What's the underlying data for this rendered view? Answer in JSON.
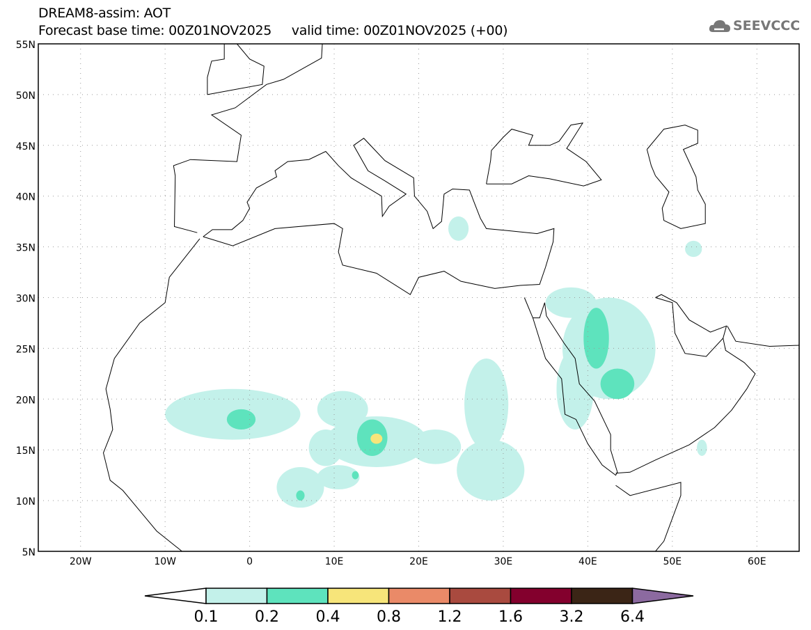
{
  "header": {
    "title": "DREAM8-assim: AOT",
    "base_time": "Forecast base time: 00Z01NOV2025",
    "valid_time": "valid time: 00Z01NOV2025 (+00)",
    "logo": "SEEVCCC"
  },
  "map": {
    "lon_range": [
      -25,
      65
    ],
    "lat_range": [
      5,
      55
    ],
    "lat_labels": [
      "5N",
      "10N",
      "15N",
      "20N",
      "25N",
      "30N",
      "35N",
      "40N",
      "45N",
      "50N",
      "55N"
    ],
    "lon_labels": [
      "20W",
      "10W",
      "0",
      "10E",
      "20E",
      "30E",
      "40E",
      "50E",
      "60E"
    ],
    "lon_ticks": [
      -20,
      -10,
      0,
      10,
      20,
      30,
      40,
      50,
      60
    ],
    "lat_ticks": [
      5,
      10,
      15,
      20,
      25,
      30,
      35,
      40,
      45,
      50,
      55
    ],
    "aot_regions": [
      {
        "level": 1,
        "lon": -2,
        "lat": 18.5,
        "dlon": 8,
        "dlat": 2.5
      },
      {
        "level": 1,
        "lon": 9,
        "lat": 15.2,
        "dlon": 2,
        "dlat": 1.8
      },
      {
        "level": 1,
        "lon": 11,
        "lat": 19,
        "dlon": 3,
        "dlat": 1.8
      },
      {
        "level": 1,
        "lon": 15,
        "lat": 15.8,
        "dlon": 6,
        "dlat": 2.5
      },
      {
        "level": 1,
        "lon": 22,
        "lat": 15.3,
        "dlon": 3,
        "dlat": 1.7
      },
      {
        "level": 1,
        "lon": 10.5,
        "lat": 12.3,
        "dlon": 2.5,
        "dlat": 1.2
      },
      {
        "level": 1,
        "lon": 6,
        "lat": 11.3,
        "dlon": 2.8,
        "dlat": 2
      },
      {
        "level": 1,
        "lon": 28.5,
        "lat": 13,
        "dlon": 4,
        "dlat": 3
      },
      {
        "level": 1,
        "lon": 28,
        "lat": 19.5,
        "dlon": 2.6,
        "dlat": 4.5
      },
      {
        "level": 1,
        "lon": 38,
        "lat": 29.5,
        "dlon": 3,
        "dlat": 1.5
      },
      {
        "level": 1,
        "lon": 42.5,
        "lat": 25,
        "dlon": 5.5,
        "dlat": 5
      },
      {
        "level": 1,
        "lon": 38.5,
        "lat": 21,
        "dlon": 2.2,
        "dlat": 4
      },
      {
        "level": 1,
        "lon": 53.5,
        "lat": 15.2,
        "dlon": 0.6,
        "dlat": 0.8
      },
      {
        "level": 1,
        "lon": 24.7,
        "lat": 36.8,
        "dlon": 1.2,
        "dlat": 1.2
      },
      {
        "level": 1,
        "lon": 52.5,
        "lat": 34.8,
        "dlon": 1,
        "dlat": 0.8
      },
      {
        "level": 2,
        "lon": -1,
        "lat": 18,
        "dlon": 1.7,
        "dlat": 1
      },
      {
        "level": 2,
        "lon": 41,
        "lat": 26,
        "dlon": 1.5,
        "dlat": 3
      },
      {
        "level": 2,
        "lon": 43.5,
        "lat": 21.5,
        "dlon": 2,
        "dlat": 1.5
      },
      {
        "level": 2,
        "lon": 14.5,
        "lat": 16.2,
        "dlon": 1.8,
        "dlat": 1.8
      },
      {
        "level": 2,
        "lon": 12.5,
        "lat": 12.5,
        "dlon": 0.4,
        "dlat": 0.4
      },
      {
        "level": 2,
        "lon": 6,
        "lat": 10.5,
        "dlon": 0.5,
        "dlat": 0.5
      },
      {
        "level": 3,
        "lon": 15,
        "lat": 16.1,
        "dlon": 0.7,
        "dlat": 0.5
      }
    ]
  },
  "colorbar": {
    "labels": [
      "0.1",
      "0.2",
      "0.4",
      "0.8",
      "1.2",
      "1.6",
      "3.2",
      "6.4"
    ],
    "colors": [
      "#c3f1ea",
      "#5ee3bd",
      "#f7e57a",
      "#ea8a68",
      "#a94a3f",
      "#83002d",
      "#3b2516"
    ],
    "below_color": "#ffffff",
    "above_color": "#8c6aa0"
  }
}
